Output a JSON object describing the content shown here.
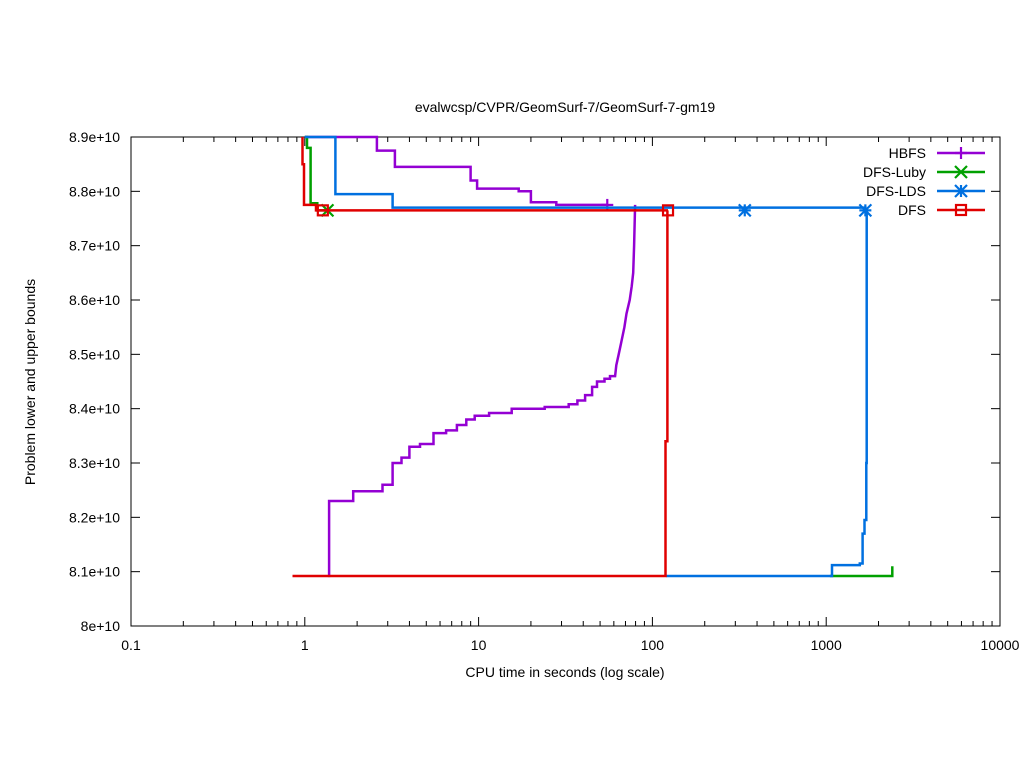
{
  "chart_data": {
    "type": "line",
    "title": "evalwcsp/CVPR/GeomSurf-7/GeomSurf-7-gm19",
    "xlabel": "CPU time in seconds (log scale)",
    "ylabel": "Problem lower and upper bounds",
    "xscale": "log",
    "xlim": [
      0.1,
      10000
    ],
    "ylim": [
      80000000000,
      89000000000
    ],
    "x_ticks": [
      0.1,
      1,
      10,
      100,
      1000,
      10000
    ],
    "x_tick_labels": [
      "0.1",
      "1",
      "10",
      "100",
      "1000",
      "10000"
    ],
    "y_ticks": [
      80000000000,
      81000000000,
      82000000000,
      83000000000,
      84000000000,
      85000000000,
      86000000000,
      87000000000,
      88000000000,
      89000000000
    ],
    "y_tick_labels": [
      "8e+10",
      "8.1e+10",
      "8.2e+10",
      "8.3e+10",
      "8.4e+10",
      "8.5e+10",
      "8.6e+10",
      "8.7e+10",
      "8.8e+10",
      "8.9e+10"
    ],
    "grid": false,
    "legend_position": "top-right",
    "series": [
      {
        "name": "HBFS",
        "color": "#9400d3",
        "marker": "plus",
        "upper": [
          [
            1.0,
            89000000000
          ],
          [
            2.6,
            89000000000
          ],
          [
            2.6,
            88750000000
          ],
          [
            3.3,
            88750000000
          ],
          [
            3.3,
            88450000000
          ],
          [
            9.0,
            88450000000
          ],
          [
            9.0,
            88200000000
          ],
          [
            9.8,
            88200000000
          ],
          [
            9.8,
            88050000000
          ],
          [
            17.0,
            88050000000
          ],
          [
            17.0,
            88000000000
          ],
          [
            20.0,
            88000000000
          ],
          [
            20.0,
            87800000000
          ],
          [
            28.0,
            87800000000
          ],
          [
            28.0,
            87750000000
          ],
          [
            55.0,
            87750000000
          ]
        ],
        "upper_marker_x": [
          55.0
        ],
        "lower": [
          [
            1.38,
            80900000000
          ],
          [
            1.38,
            82300000000
          ],
          [
            1.9,
            82300000000
          ],
          [
            1.9,
            82480000000
          ],
          [
            2.8,
            82480000000
          ],
          [
            2.8,
            82600000000
          ],
          [
            3.2,
            82600000000
          ],
          [
            3.2,
            83000000000
          ],
          [
            3.6,
            83000000000
          ],
          [
            3.6,
            83100000000
          ],
          [
            4.0,
            83100000000
          ],
          [
            4.0,
            83300000000
          ],
          [
            4.6,
            83300000000
          ],
          [
            4.6,
            83350000000
          ],
          [
            5.5,
            83350000000
          ],
          [
            5.5,
            83550000000
          ],
          [
            6.5,
            83550000000
          ],
          [
            6.5,
            83600000000
          ],
          [
            7.5,
            83600000000
          ],
          [
            7.5,
            83700000000
          ],
          [
            8.5,
            83700000000
          ],
          [
            8.5,
            83800000000
          ],
          [
            9.5,
            83800000000
          ],
          [
            9.5,
            83870000000
          ],
          [
            11.5,
            83870000000
          ],
          [
            11.5,
            83920000000
          ],
          [
            15.5,
            83920000000
          ],
          [
            15.5,
            84000000000
          ],
          [
            24.0,
            84000000000
          ],
          [
            24.0,
            84030000000
          ],
          [
            33.0,
            84030000000
          ],
          [
            33.0,
            84080000000
          ],
          [
            37.0,
            84080000000
          ],
          [
            37.0,
            84150000000
          ],
          [
            41.0,
            84150000000
          ],
          [
            41.0,
            84250000000
          ],
          [
            45.0,
            84250000000
          ],
          [
            45.0,
            84400000000
          ],
          [
            48.0,
            84400000000
          ],
          [
            48.0,
            84500000000
          ],
          [
            53.0,
            84500000000
          ],
          [
            53.0,
            84550000000
          ],
          [
            57.0,
            84550000000
          ],
          [
            57.0,
            84600000000
          ],
          [
            61.0,
            84600000000
          ],
          [
            62.0,
            84800000000
          ],
          [
            64.0,
            85000000000
          ],
          [
            66.0,
            85200000000
          ],
          [
            69.0,
            85500000000
          ],
          [
            71.0,
            85750000000
          ],
          [
            74.0,
            86000000000
          ],
          [
            76.0,
            86250000000
          ],
          [
            77.5,
            86500000000
          ],
          [
            78.5,
            87000000000
          ],
          [
            79.5,
            87750000000
          ]
        ]
      },
      {
        "name": "DFS-Luby",
        "color": "#00a000",
        "marker": "x",
        "upper": [
          [
            1.0,
            89000000000
          ],
          [
            1.03,
            89000000000
          ],
          [
            1.03,
            88800000000
          ],
          [
            1.08,
            88800000000
          ],
          [
            1.08,
            87780000000
          ],
          [
            1.18,
            87780000000
          ],
          [
            1.18,
            87650000000
          ],
          [
            1.35,
            87650000000
          ]
        ],
        "upper_marker_x": [
          1.35
        ],
        "lower": [
          [
            1050.0,
            80920000000
          ],
          [
            2400.0,
            80920000000
          ],
          [
            2400.0,
            81100000000
          ]
        ]
      },
      {
        "name": "DFS-LDS",
        "color": "#0070e0",
        "marker": "star",
        "upper": [
          [
            1.0,
            89000000000
          ],
          [
            1.5,
            89000000000
          ],
          [
            1.5,
            87950000000
          ],
          [
            3.2,
            87950000000
          ],
          [
            3.2,
            87700000000
          ],
          [
            1680.0,
            87700000000
          ],
          [
            1680.0,
            87650000000
          ]
        ],
        "upper_marker_x": [
          340.0,
          1680.0
        ],
        "lower": [
          [
            120.0,
            80920000000
          ],
          [
            1080.0,
            80920000000
          ],
          [
            1080.0,
            81120000000
          ],
          [
            1560.0,
            81120000000
          ],
          [
            1560.0,
            81150000000
          ],
          [
            1620.0,
            81150000000
          ],
          [
            1620.0,
            81700000000
          ],
          [
            1660.0,
            81700000000
          ],
          [
            1660.0,
            81950000000
          ],
          [
            1700.0,
            81950000000
          ],
          [
            1700.0,
            83000000000
          ],
          [
            1710.0,
            83000000000
          ],
          [
            1710.0,
            87650000000
          ]
        ]
      },
      {
        "name": "DFS",
        "color": "#e00000",
        "marker": "square",
        "upper": [
          [
            0.97,
            89000000000
          ],
          [
            0.97,
            88500000000
          ],
          [
            0.99,
            88500000000
          ],
          [
            0.99,
            87750000000
          ],
          [
            1.16,
            87750000000
          ],
          [
            1.16,
            87650000000
          ],
          [
            123.0,
            87650000000
          ]
        ],
        "upper_marker_x": [
          1.27,
          123.0
        ],
        "lower": [
          [
            0.85,
            80920000000
          ],
          [
            119.0,
            80920000000
          ],
          [
            119.0,
            83400000000
          ],
          [
            122.0,
            83400000000
          ],
          [
            122.0,
            87650000000
          ]
        ]
      }
    ]
  }
}
